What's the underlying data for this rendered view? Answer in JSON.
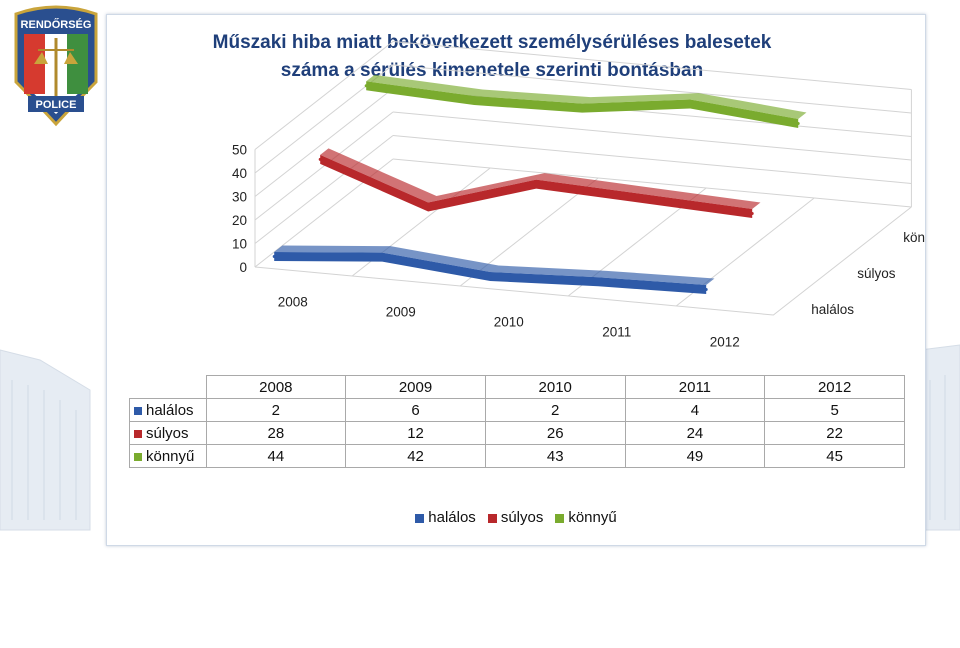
{
  "logo": {
    "top_text": "RENDŐRSÉG",
    "bottom_text": "POLICE"
  },
  "chart_data": {
    "type": "line",
    "title_line1": "Műszaki hiba miatt bekövetkezett személysérüléses balesetek",
    "title_line2": "száma a sérülés kimenetele szerinti bontásban",
    "categories": [
      "2008",
      "2009",
      "2010",
      "2011",
      "2012"
    ],
    "yticks": [
      "0",
      "10",
      "20",
      "30",
      "40",
      "50"
    ],
    "ylim": [
      0,
      50
    ],
    "series": [
      {
        "name": "halálos",
        "values": [
          2,
          6,
          2,
          4,
          5
        ],
        "color": "#2e5aa8"
      },
      {
        "name": "súlyos",
        "values": [
          28,
          12,
          26,
          24,
          22
        ],
        "color": "#b8282b"
      },
      {
        "name": "könnyű",
        "values": [
          44,
          42,
          43,
          49,
          45
        ],
        "color": "#7aab2e"
      }
    ],
    "depth_labels": [
      "könnyű",
      "súlyos",
      "halálos"
    ],
    "legend_position": "bottom",
    "grid": true,
    "table": true
  }
}
